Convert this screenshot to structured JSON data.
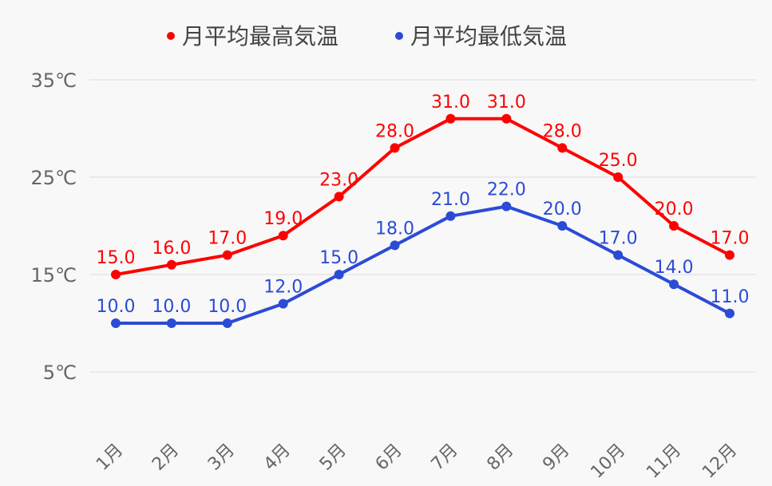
{
  "chart_data": {
    "type": "line",
    "title": "",
    "xlabel": "",
    "ylabel": "",
    "categories": [
      "1月",
      "2月",
      "3月",
      "4月",
      "5月",
      "6月",
      "7月",
      "8月",
      "9月",
      "10月",
      "11月",
      "12月"
    ],
    "series": [
      {
        "name": "月平均最高気温",
        "color": "#ff0000",
        "values": [
          15.0,
          16.0,
          17.0,
          19.0,
          23.0,
          28.0,
          31.0,
          31.0,
          28.0,
          25.0,
          20.0,
          17.0
        ]
      },
      {
        "name": "月平均最低気温",
        "color": "#2b4bd6",
        "values": [
          10.0,
          10.0,
          10.0,
          12.0,
          15.0,
          18.0,
          21.0,
          22.0,
          20.0,
          17.0,
          14.0,
          11.0
        ]
      }
    ],
    "yticks": [
      5,
      15,
      25,
      35
    ],
    "ytick_labels": [
      "5℃",
      "15℃",
      "25℃",
      "35℃"
    ],
    "ylim": [
      0,
      35
    ],
    "grid": true,
    "legend": "top-center"
  }
}
